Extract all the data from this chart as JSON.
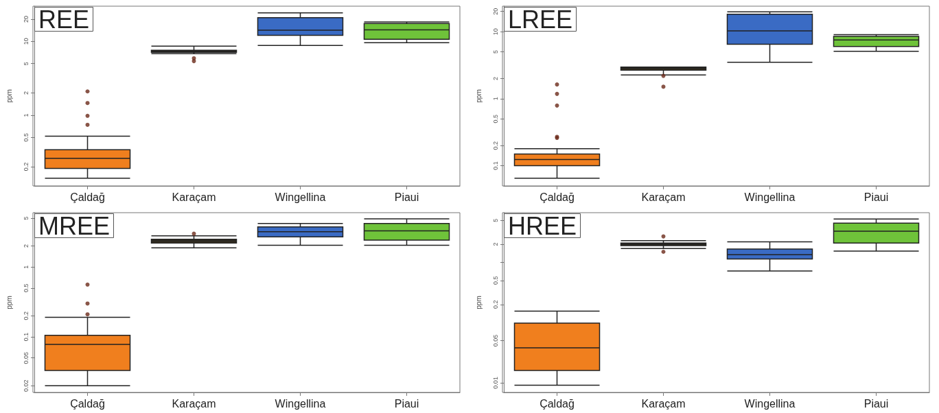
{
  "chart_data": [
    {
      "type": "box",
      "title": "REE",
      "ylabel": "ppm",
      "categories": [
        "Çaldağ",
        "Karaçam",
        "Wingellina",
        "Piaui"
      ],
      "colors": [
        "#f07f1e",
        "#3b3320",
        "#3a6bc4",
        "#6fc33a"
      ],
      "log": "y",
      "grid": false,
      "ylim": [
        0.11,
        30
      ],
      "yticks": [
        0.2,
        0.5,
        1,
        2,
        5,
        10,
        20
      ],
      "boxes": [
        {
          "low": 0.14,
          "q1": 0.19,
          "median": 0.26,
          "q3": 0.34,
          "high": 0.52,
          "outliers": [
            0.74,
            0.98,
            1.46,
            2.1
          ]
        },
        {
          "low": 6.8,
          "q1": 7.1,
          "median": 7.3,
          "q3": 7.6,
          "high": 8.6,
          "outliers": [
            5.9,
            5.4
          ]
        },
        {
          "low": 8.8,
          "q1": 12.1,
          "median": 14.2,
          "q3": 21,
          "high": 24.3
        },
        {
          "low": 9.6,
          "q1": 10.7,
          "median": 14.3,
          "q3": 17.5,
          "high": 18.3
        }
      ]
    },
    {
      "type": "box",
      "title": "LREE",
      "ylabel": "ppm",
      "categories": [
        "Çaldağ",
        "Karaçam",
        "Wingellina",
        "Piaui"
      ],
      "colors": [
        "#f07f1e",
        "#3b3320",
        "#3a6bc4",
        "#6fc33a"
      ],
      "log": "y",
      "grid": false,
      "ylim": [
        0.05,
        24
      ],
      "yticks": [
        0.1,
        0.2,
        0.5,
        1,
        2,
        5,
        10,
        20
      ],
      "boxes": [
        {
          "low": 0.065,
          "q1": 0.1,
          "median": 0.124,
          "q3": 0.15,
          "high": 0.18,
          "outliers": [
            0.27,
            0.26,
            0.79,
            1.18,
            1.63
          ]
        },
        {
          "low": 2.26,
          "q1": 2.67,
          "median": 2.84,
          "q3": 2.96,
          "high": 2.96,
          "outliers": [
            2.19,
            1.51
          ]
        },
        {
          "low": 3.5,
          "q1": 6.5,
          "median": 10.3,
          "q3": 18.2,
          "high": 19.8
        },
        {
          "low": 5.1,
          "q1": 6.0,
          "median": 7.5,
          "q3": 8.5,
          "high": 9.0
        }
      ]
    },
    {
      "type": "box",
      "title": "MREE",
      "ylabel": "ppm",
      "categories": [
        "Çaldağ",
        "Karaçam",
        "Wingellina",
        "Piaui"
      ],
      "colors": [
        "#f07f1e",
        "#3b3320",
        "#3a6bc4",
        "#6fc33a"
      ],
      "log": "y",
      "grid": false,
      "ylim": [
        0.016,
        6
      ],
      "yticks": [
        0.02,
        0.05,
        0.1,
        0.2,
        0.5,
        1,
        2,
        5
      ],
      "boxes": [
        {
          "low": 0.02,
          "q1": 0.033,
          "median": 0.078,
          "q3": 0.105,
          "high": 0.19,
          "outliers": [
            0.21,
            0.3,
            0.56
          ]
        },
        {
          "low": 1.88,
          "q1": 2.2,
          "median": 2.36,
          "q3": 2.5,
          "high": 2.79,
          "outliers": [
            3.0
          ]
        },
        {
          "low": 2.05,
          "q1": 2.7,
          "median": 3.2,
          "q3": 3.76,
          "high": 4.2
        },
        {
          "low": 2.05,
          "q1": 2.43,
          "median": 3.3,
          "q3": 4.2,
          "high": 4.9
        }
      ]
    },
    {
      "type": "box",
      "title": "HREE",
      "ylabel": "ppm",
      "categories": [
        "Çaldağ",
        "Karaçam",
        "Wingellina",
        "Piaui"
      ],
      "colors": [
        "#f07f1e",
        "#3b3320",
        "#3a6bc4",
        "#6fc33a"
      ],
      "log": "y",
      "grid": false,
      "ylim": [
        0.0069,
        6.7
      ],
      "yticks": [
        0.01,
        0.05,
        0.2,
        0.5,
        {
          "value": 1,
          "label": null
        },
        2,
        5
      ],
      "boxes": [
        {
          "low": 0.0091,
          "q1": 0.016,
          "median": 0.038,
          "q3": 0.098,
          "high": 0.155
        },
        {
          "low": 1.7,
          "q1": 1.9,
          "median": 2.0,
          "q3": 2.1,
          "high": 2.3,
          "outliers": [
            2.7,
            1.5
          ]
        },
        {
          "low": 0.72,
          "q1": 1.14,
          "median": 1.34,
          "q3": 1.67,
          "high": 2.2
        },
        {
          "low": 1.54,
          "q1": 2.1,
          "median": 3.3,
          "q3": 4.5,
          "high": 5.25
        }
      ]
    }
  ]
}
